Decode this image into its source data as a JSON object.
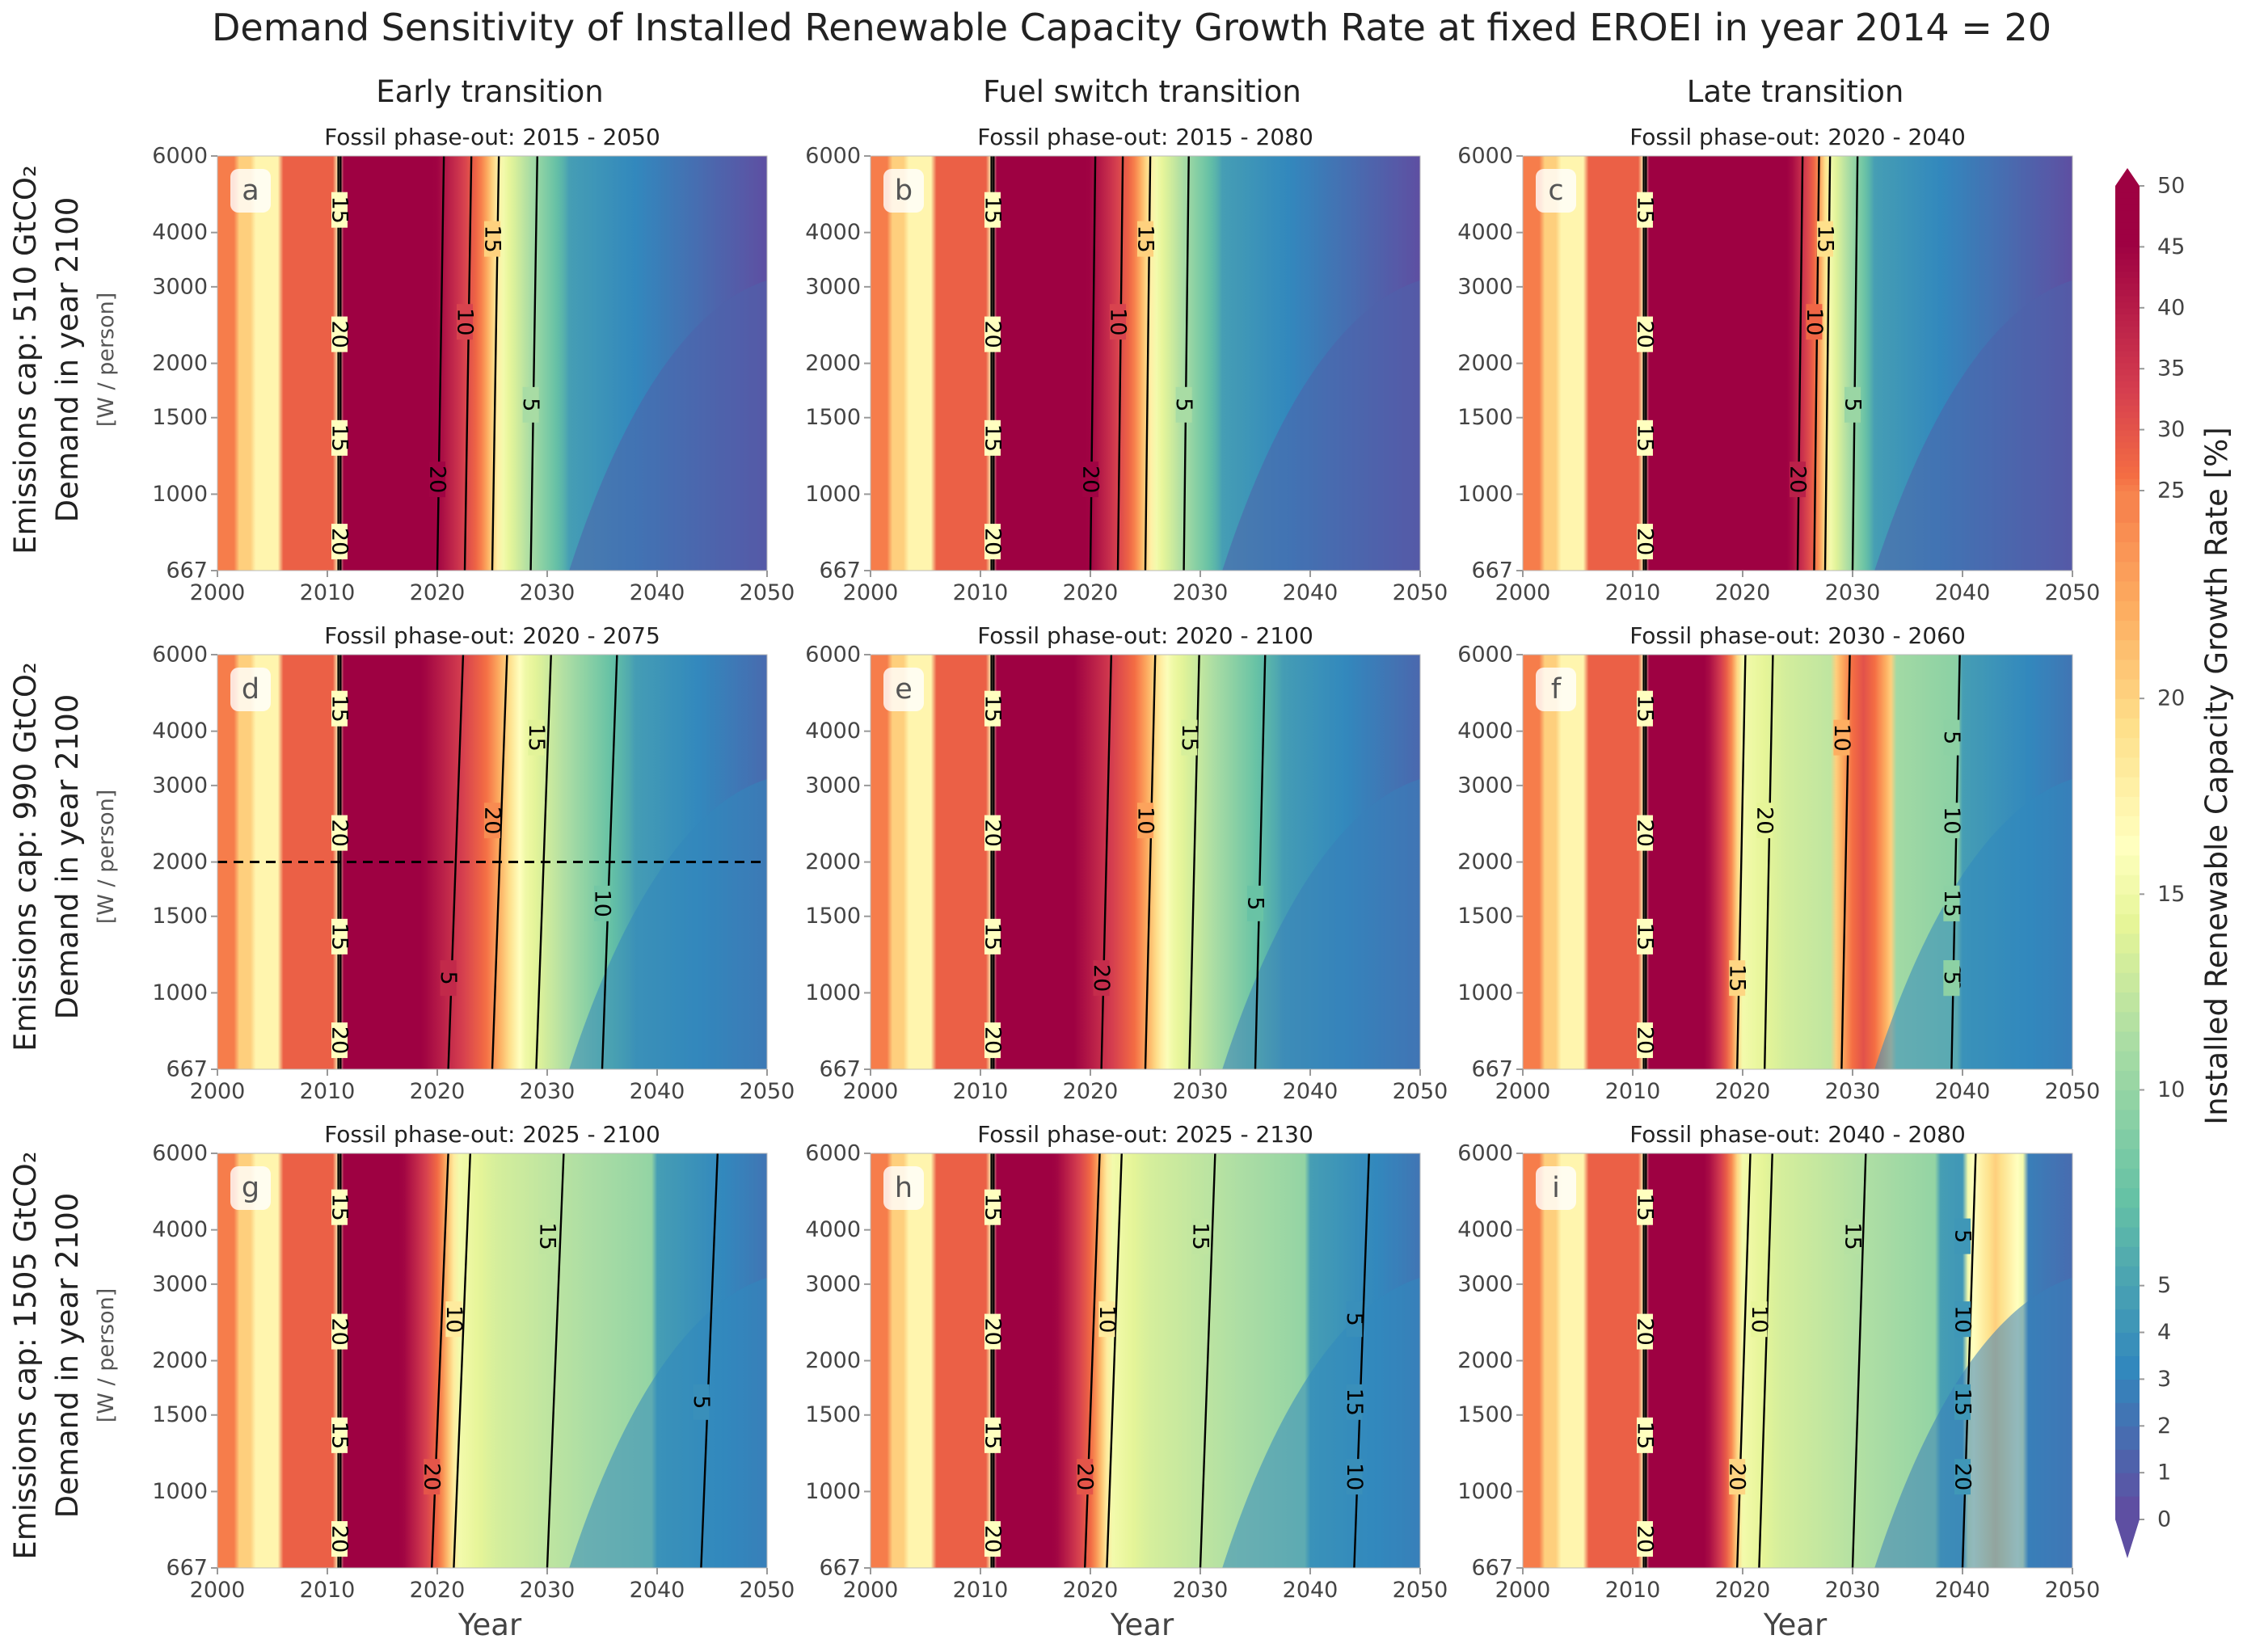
{
  "title": "Demand Sensitivity of Installed Renewable Capacity Growth Rate at fixed EROEI in year 2014 = 20",
  "column_titles": [
    "Early transition",
    "Fuel switch transition",
    "Late transition"
  ],
  "row_titles": [
    {
      "line1": "Emissions cap: 510 GtCO₂",
      "line2": "Demand in year 2100",
      "unit": "[W / person]"
    },
    {
      "line1": "Emissions cap: 990 GtCO₂",
      "line2": "Demand in year 2100",
      "unit": "[W / person]"
    },
    {
      "line1": "Emissions cap: 1505 GtCO₂",
      "line2": "Demand in year 2100",
      "unit": "[W / person]"
    }
  ],
  "xlabel": "Year",
  "colorbar": {
    "label": "Installed Renewable Capacity Growth Rate [%]",
    "ticks": [
      "0",
      "1",
      "2",
      "3",
      "4",
      "5",
      "10",
      "15",
      "20",
      "25",
      "30",
      "35",
      "40",
      "45",
      "50"
    ],
    "colors": {
      "low": "#5e4fa2",
      "mid": "#ffffbf",
      "high": "#9e0142"
    }
  },
  "chart_data": {
    "type": "heatmap",
    "x_ticks": [
      "2000",
      "2010",
      "2020",
      "2030",
      "2040",
      "2050"
    ],
    "y_ticks": [
      "667",
      "1000",
      "1500",
      "2000",
      "3000",
      "4000",
      "6000"
    ],
    "xlim": [
      2000,
      2050
    ],
    "ylim": [
      667,
      6000
    ],
    "y_scale": "log",
    "panels": [
      {
        "letter": "a",
        "subtitle": "Fossil phase-out: 2015 - 2050",
        "contour_labels": [
          "15",
          "20",
          "15",
          "20",
          "20",
          "10",
          "15",
          "5"
        ],
        "fossil_start": 2015,
        "fossil_end": 2050,
        "demand_slope": 0.4,
        "shape": "fast"
      },
      {
        "letter": "b",
        "subtitle": "Fossil phase-out: 2015 - 2080",
        "contour_labels": [
          "15",
          "20",
          "15",
          "20",
          "20",
          "10",
          "15",
          "5"
        ],
        "fossil_start": 2015,
        "fossil_end": 2080,
        "demand_slope": 0.3,
        "shape": "fast"
      },
      {
        "letter": "c",
        "subtitle": "Fossil phase-out: 2020 - 2040",
        "contour_labels": [
          "15",
          "20",
          "15",
          "20",
          "20",
          "10",
          "15",
          "5"
        ],
        "fossil_start": 2020,
        "fossil_end": 2040,
        "demand_slope": 0.3,
        "shape": "late"
      },
      {
        "letter": "d",
        "subtitle": "Fossil phase-out: 2020 - 2075",
        "contour_labels": [
          "15",
          "20",
          "15",
          "20",
          "5",
          "20",
          "15",
          "10"
        ],
        "fossil_start": 2020,
        "fossil_end": 2075,
        "demand_slope": 0.9,
        "shape": "medium"
      },
      {
        "letter": "e",
        "subtitle": "Fossil phase-out: 2020 - 2100",
        "contour_labels": [
          "15",
          "20",
          "15",
          "20",
          "20",
          "10",
          "15",
          "5"
        ],
        "fossil_start": 2020,
        "fossil_end": 2100,
        "demand_slope": 0.6,
        "shape": "medium"
      },
      {
        "letter": "f",
        "subtitle": "Fossil phase-out: 2030 - 2060",
        "contour_labels": [
          "15",
          "20",
          "15",
          "20",
          "15",
          "20",
          "10",
          "15",
          "20",
          "10",
          "5",
          "15",
          "5"
        ],
        "fossil_start": 2030,
        "fossil_end": 2060,
        "demand_slope": 0.5,
        "shape": "double"
      },
      {
        "letter": "g",
        "subtitle": "Fossil phase-out: 2025 - 2100",
        "contour_labels": [
          "15",
          "20",
          "15",
          "20",
          "20",
          "10",
          "15",
          "5"
        ],
        "fossil_start": 2025,
        "fossil_end": 2100,
        "demand_slope": 1.0,
        "shape": "slow"
      },
      {
        "letter": "h",
        "subtitle": "Fossil phase-out: 2025 - 2130",
        "contour_labels": [
          "15",
          "20",
          "15",
          "20",
          "20",
          "10",
          "15",
          "15",
          "10",
          "5"
        ],
        "fossil_start": 2025,
        "fossil_end": 2130,
        "demand_slope": 0.9,
        "shape": "slow"
      },
      {
        "letter": "i",
        "subtitle": "Fossil phase-out: 2040 - 2080",
        "contour_labels": [
          "15",
          "20",
          "15",
          "20",
          "20",
          "10",
          "15",
          "15",
          "20",
          "10",
          "5"
        ],
        "fossil_start": 2040,
        "fossil_end": 2080,
        "demand_slope": 0.8,
        "shape": "peak"
      }
    ],
    "dashed_line": {
      "panel": "d",
      "y": 2000
    }
  }
}
